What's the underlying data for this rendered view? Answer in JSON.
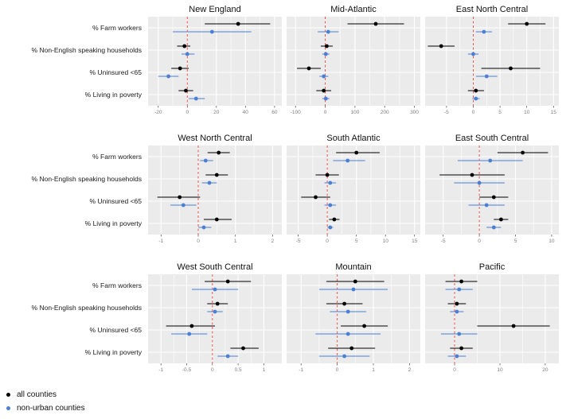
{
  "figure": {
    "background": "#ffffff",
    "panel_background": "#ebebeb",
    "grid_color": "#ffffff",
    "zero_line_color": "#e8534a",
    "series_colors": {
      "all": "#000000",
      "non_urban": "#4a7fd3"
    }
  },
  "legend": {
    "items": [
      {
        "label": "all counties",
        "color": "#000000"
      },
      {
        "label": "non-urban counties",
        "color": "#4a7fd3"
      }
    ]
  },
  "chart_data": {
    "type": "scatter",
    "subtype": "faceted-forest-plot-with-error-bars",
    "categories": [
      "% Farm workers",
      "% Non-English speaking households",
      "% Uninsured <65",
      "% Living in poverty"
    ],
    "series_names": [
      "all counties",
      "non-urban counties"
    ],
    "zero_reference_line": 0,
    "panels": [
      {
        "title": "New England",
        "xlim": [
          -27,
          65
        ],
        "ticks": [
          -20,
          0,
          20,
          40,
          60
        ],
        "all": [
          [
            35,
            12,
            57
          ],
          [
            -2,
            -7,
            2
          ],
          [
            -5,
            -11,
            1
          ],
          [
            -1,
            -6,
            4
          ]
        ],
        "non_urban": [
          [
            17,
            -10,
            44
          ],
          [
            0,
            -4,
            5
          ],
          [
            -13,
            -20,
            -6
          ],
          [
            6,
            1,
            12
          ]
        ]
      },
      {
        "title": "Mid-Atlantic",
        "xlim": [
          -130,
          320
        ],
        "ticks": [
          -100,
          0,
          100,
          200,
          300
        ],
        "all": [
          [
            170,
            75,
            265
          ],
          [
            5,
            -15,
            25
          ],
          [
            -55,
            -95,
            -15
          ],
          [
            -5,
            -30,
            20
          ]
        ],
        "non_urban": [
          [
            10,
            -25,
            45
          ],
          [
            2,
            -10,
            14
          ],
          [
            -5,
            -20,
            10
          ],
          [
            2,
            -10,
            14
          ]
        ]
      },
      {
        "title": "East North Central",
        "xlim": [
          -9,
          16
        ],
        "ticks": [
          -5,
          0,
          5,
          10,
          15
        ],
        "all": [
          [
            10,
            6.5,
            13.5
          ],
          [
            -6,
            -8.5,
            -3.5
          ],
          [
            7,
            1.5,
            12.5
          ],
          [
            0.5,
            -1,
            2
          ]
        ],
        "non_urban": [
          [
            2,
            0.5,
            3.5
          ],
          [
            0,
            -1,
            1
          ],
          [
            2.5,
            0.5,
            4.5
          ],
          [
            0.5,
            -0.2,
            1.2
          ]
        ]
      },
      {
        "title": "West North Central",
        "xlim": [
          -1.35,
          2.25
        ],
        "ticks": [
          -1,
          0,
          1,
          2
        ],
        "all": [
          [
            0.55,
            0.25,
            0.85
          ],
          [
            0.5,
            0.2,
            0.8
          ],
          [
            -0.5,
            -1.1,
            0.05
          ],
          [
            0.5,
            0.15,
            0.9
          ]
        ],
        "non_urban": [
          [
            0.2,
            0.05,
            0.4
          ],
          [
            0.3,
            0.1,
            0.5
          ],
          [
            -0.4,
            -0.75,
            -0.05
          ],
          [
            0.15,
            0,
            0.35
          ]
        ]
      },
      {
        "title": "South Atlantic",
        "xlim": [
          -7,
          16
        ],
        "ticks": [
          -5,
          0,
          5,
          10,
          15
        ],
        "all": [
          [
            5,
            1.5,
            9
          ],
          [
            0,
            -2,
            2
          ],
          [
            -2,
            -4.5,
            0.5
          ],
          [
            1.2,
            0.3,
            2.1
          ]
        ],
        "non_urban": [
          [
            3.5,
            1,
            6.5
          ],
          [
            0.5,
            -0.5,
            1.5
          ],
          [
            0.5,
            -0.5,
            1.5
          ],
          [
            0.5,
            0,
            1
          ]
        ]
      },
      {
        "title": "East South Central",
        "xlim": [
          -7.5,
          11
        ],
        "ticks": [
          -5,
          0,
          5,
          10
        ],
        "all": [
          [
            6,
            2.5,
            9.5
          ],
          [
            -1,
            -5.5,
            3.5
          ],
          [
            2,
            0,
            4
          ],
          [
            3,
            2,
            4
          ]
        ],
        "non_urban": [
          [
            1.5,
            -3,
            6
          ],
          [
            0,
            -3.5,
            3.5
          ],
          [
            1,
            -1.5,
            3.5
          ],
          [
            2,
            1,
            3
          ]
        ]
      },
      {
        "title": "West South Central",
        "xlim": [
          -1.25,
          1.35
        ],
        "ticks": [
          -1,
          -0.5,
          0,
          0.5,
          1
        ],
        "all": [
          [
            0.3,
            -0.15,
            0.75
          ],
          [
            0.1,
            -0.1,
            0.3
          ],
          [
            -0.4,
            -0.9,
            0.05
          ],
          [
            0.6,
            0.35,
            0.9
          ]
        ],
        "non_urban": [
          [
            0.05,
            -0.4,
            0.5
          ],
          [
            0.05,
            -0.1,
            0.2
          ],
          [
            -0.45,
            -0.8,
            -0.1
          ],
          [
            0.3,
            0.1,
            0.5
          ]
        ]
      },
      {
        "title": "Mountain",
        "xlim": [
          -1.4,
          2.3
        ],
        "ticks": [
          -1,
          0,
          1,
          2
        ],
        "all": [
          [
            0.5,
            -0.3,
            1.3
          ],
          [
            0.2,
            -0.3,
            0.7
          ],
          [
            0.75,
            0.1,
            1.4
          ],
          [
            0.4,
            -0.25,
            1.05
          ]
        ],
        "non_urban": [
          [
            0.45,
            -0.5,
            1.4
          ],
          [
            0.3,
            -0.2,
            0.8
          ],
          [
            0.3,
            -0.6,
            1.2
          ],
          [
            0.2,
            -0.5,
            0.9
          ]
        ]
      },
      {
        "title": "Pacific",
        "xlim": [
          -6.5,
          23
        ],
        "ticks": [
          0,
          10,
          20
        ],
        "all": [
          [
            1.5,
            -2,
            5
          ],
          [
            0.5,
            -1.5,
            2.5
          ],
          [
            13,
            5,
            21
          ],
          [
            1.5,
            -1,
            4
          ]
        ],
        "non_urban": [
          [
            1,
            -2,
            4
          ],
          [
            0.5,
            -1,
            2
          ],
          [
            1,
            -3,
            5
          ],
          [
            0.5,
            -1.5,
            2.5
          ]
        ]
      }
    ]
  }
}
